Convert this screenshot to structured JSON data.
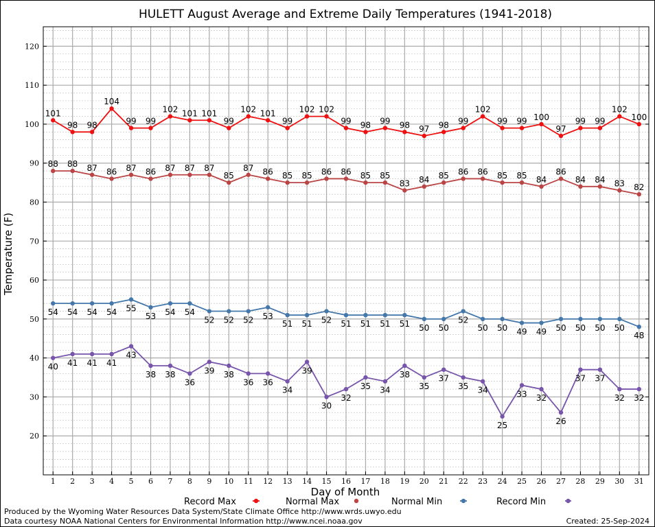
{
  "chart_data": {
    "type": "line",
    "title": "HULETT August Average and Extreme Daily Temperatures (1941-2018)",
    "xlabel": "Day of Month",
    "ylabel": "Temperature (F)",
    "xlim": [
      0.5,
      31.5
    ],
    "ylim": [
      10,
      125
    ],
    "yticks": [
      20,
      30,
      40,
      50,
      60,
      70,
      80,
      90,
      100,
      110,
      120
    ],
    "x": [
      1,
      2,
      3,
      4,
      5,
      6,
      7,
      8,
      9,
      10,
      11,
      12,
      13,
      14,
      15,
      16,
      17,
      18,
      19,
      20,
      21,
      22,
      23,
      24,
      25,
      26,
      27,
      28,
      29,
      30,
      31
    ],
    "grid": true,
    "legend_position": "bottom",
    "series": [
      {
        "name": "Record Max",
        "color": "#ee1111",
        "values": [
          101,
          98,
          98,
          104,
          99,
          99,
          102,
          101,
          101,
          99,
          102,
          101,
          99,
          102,
          102,
          99,
          98,
          99,
          98,
          97,
          98,
          99,
          102,
          99,
          99,
          100,
          97,
          99,
          99,
          102,
          100
        ]
      },
      {
        "name": "Normal Max",
        "color": "#bb4444",
        "values": [
          88,
          88,
          87,
          86,
          87,
          86,
          87,
          87,
          87,
          85,
          87,
          86,
          85,
          85,
          86,
          86,
          85,
          85,
          83,
          84,
          85,
          86,
          86,
          85,
          85,
          84,
          86,
          84,
          84,
          83,
          82
        ]
      },
      {
        "name": "Normal Min",
        "color": "#4477aa",
        "values": [
          54,
          54,
          54,
          54,
          55,
          53,
          54,
          54,
          52,
          52,
          52,
          53,
          51,
          51,
          52,
          51,
          51,
          51,
          51,
          50,
          50,
          52,
          50,
          50,
          49,
          49,
          50,
          50,
          50,
          50,
          48
        ]
      },
      {
        "name": "Record Min",
        "color": "#7755aa",
        "values": [
          40,
          41,
          41,
          41,
          43,
          38,
          38,
          36,
          39,
          38,
          36,
          36,
          34,
          39,
          30,
          32,
          35,
          34,
          38,
          35,
          37,
          35,
          34,
          25,
          33,
          32,
          26,
          37,
          37,
          32,
          32
        ]
      }
    ]
  },
  "footer": {
    "produced_by": "Produced by the Wyoming Water Resources Data System/State Climate Office http://www.wrds.uwyo.edu",
    "courtesy": "Data courtesy NOAA National Centers for Environmental Information http://www.ncei.noaa.gov",
    "created": "Created:  25-Sep-2024"
  }
}
